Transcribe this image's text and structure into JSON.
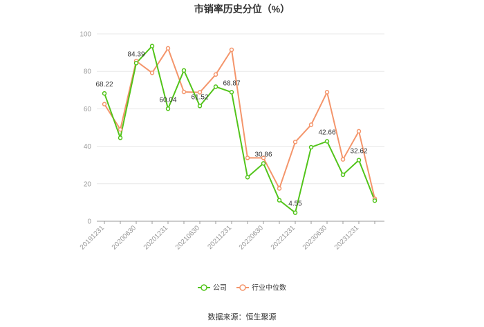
{
  "chart_data": {
    "type": "line",
    "title": "市销率历史分位（%）",
    "xlabel": "",
    "ylabel": "",
    "ylim": [
      0,
      100
    ],
    "yticks": [
      0,
      20,
      40,
      60,
      80,
      100
    ],
    "grid": true,
    "legend_position": "bottom",
    "x": [
      "20191231",
      "20200331",
      "20200630",
      "20200930",
      "20201231",
      "20210331",
      "20210630",
      "20210930",
      "20211231",
      "20220331",
      "20220630",
      "20220930",
      "20221231",
      "20230331",
      "20230630",
      "20230930",
      "20231231",
      "20240331"
    ],
    "x_tick_labels": [
      "20191231",
      "20200630",
      "20201231",
      "20210630",
      "20211231",
      "20220630",
      "20221231",
      "20230630",
      "20231231"
    ],
    "series": [
      {
        "name": "公司",
        "color": "#52c41a",
        "values": [
          68.22,
          44.5,
          84.39,
          93.5,
          60.04,
          80.5,
          61.52,
          71.8,
          68.87,
          23.5,
          30.86,
          11.2,
          4.55,
          39.5,
          42.66,
          24.8,
          32.62,
          11.0
        ]
      },
      {
        "name": "行业中位数",
        "color": "#f4956b",
        "values": [
          62.5,
          49.0,
          85.5,
          79.2,
          92.3,
          69.0,
          68.8,
          78.3,
          91.5,
          33.8,
          33.8,
          17.5,
          42.3,
          51.5,
          68.9,
          33.0,
          48.0,
          12.0
        ]
      }
    ],
    "data_labels": [
      {
        "series": 0,
        "index": 0,
        "text": "68.22"
      },
      {
        "series": 0,
        "index": 2,
        "text": "84.39"
      },
      {
        "series": 0,
        "index": 4,
        "text": "60.04"
      },
      {
        "series": 0,
        "index": 6,
        "text": "61.52"
      },
      {
        "series": 0,
        "index": 8,
        "text": "68.87"
      },
      {
        "series": 0,
        "index": 10,
        "text": "30.86"
      },
      {
        "series": 0,
        "index": 12,
        "text": "4.55"
      },
      {
        "series": 0,
        "index": 14,
        "text": "42.66"
      },
      {
        "series": 0,
        "index": 16,
        "text": "32.62"
      }
    ],
    "source": "数据来源：恒生聚源"
  }
}
